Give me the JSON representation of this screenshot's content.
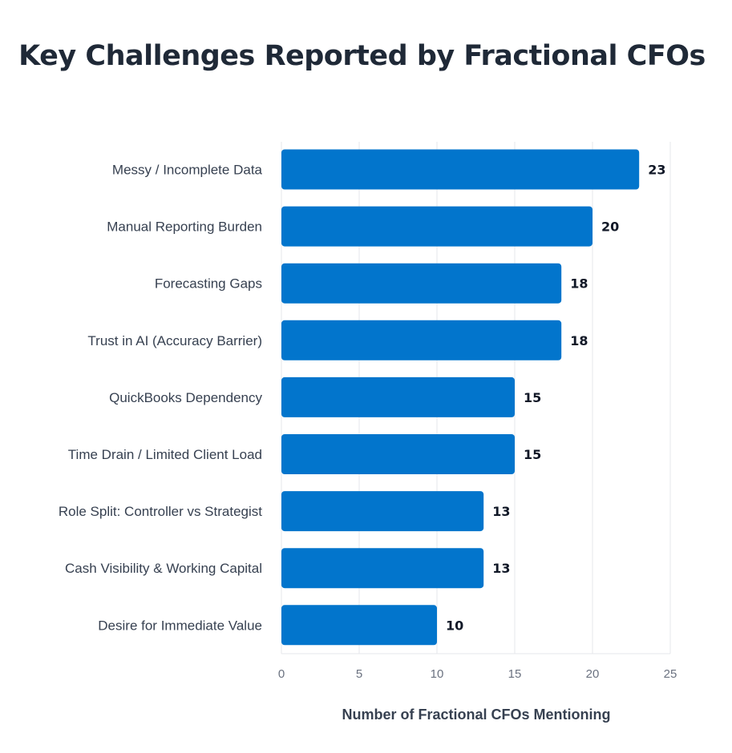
{
  "chart_data": {
    "type": "bar",
    "orientation": "horizontal",
    "title": "Key Challenges Reported by Fractional CFOs",
    "xlabel": "Number of Fractional CFOs Mentioning",
    "ylabel": "",
    "categories": [
      "Messy / Incomplete Data",
      "Manual Reporting Burden",
      "Forecasting Gaps",
      "Trust in AI (Accuracy Barrier)",
      "QuickBooks Dependency",
      "Time Drain / Limited Client Load",
      "Role Split: Controller vs Strategist",
      "Cash Visibility & Working Capital",
      "Desire for Immediate Value"
    ],
    "values": [
      23,
      20,
      18,
      18,
      15,
      15,
      13,
      13,
      10
    ],
    "xlim": [
      0,
      25
    ],
    "xticks": [
      0,
      5,
      10,
      15,
      20,
      25
    ],
    "grid": true,
    "bar_color": "#0275cc",
    "show_value_labels": true
  }
}
